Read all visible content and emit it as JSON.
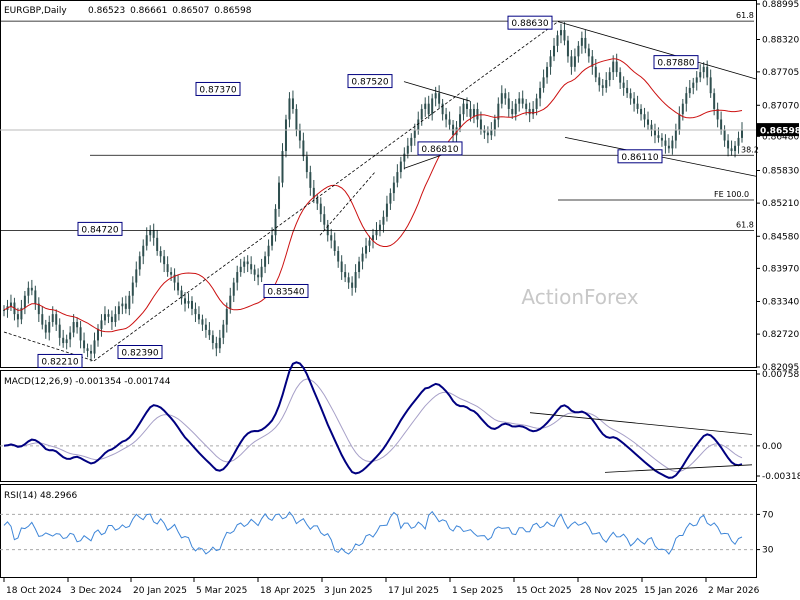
{
  "colors": {
    "candle": "#2f4f4f",
    "ma": "#cc1111",
    "macd": "#000080",
    "signal": "#a7a0c8",
    "rsi": "#3e86d8",
    "box_fill": "#ffffff",
    "box_border": "#000080",
    "line": "#000000",
    "grid_dash": "#aaaaaa"
  },
  "chart_data": [
    {
      "type": "candlestick",
      "title": "EURGBP,Daily",
      "ohlc": {
        "open": "0.86523",
        "high": "0.86661",
        "low": "0.86507",
        "close": "0.86598"
      },
      "watermark": "ActionForex",
      "y_ticks": [
        "0.88995",
        "0.88320",
        "0.87705",
        "0.87070",
        "0.86480",
        "0.85830",
        "0.85210",
        "0.84580",
        "0.83970",
        "0.83340",
        "0.82720",
        "0.82095"
      ],
      "x_ticks": [
        "18 Oct 2024",
        "3 Dec 2024",
        "20 Jan 2025",
        "5 Mar 2025",
        "18 Apr 2025",
        "3 Jun 2025",
        "17 Jul 2025",
        "1 Sep 2025",
        "15 Oct 2025",
        "28 Nov 2025",
        "15 Jan 2026",
        "2 Mar 2026"
      ],
      "last_price": "0.86598",
      "price_labels": [
        "0.88630",
        "0.87880",
        "0.87520",
        "0.87370",
        "0.86810",
        "0.86110",
        "0.84720",
        "0.83540",
        "0.82390",
        "0.82210"
      ],
      "fib_labels": [
        "61.8",
        "38.2",
        "FE 100.0",
        "61.8"
      ],
      "ma_period_note": "",
      "close_series": [
        0.8318,
        0.8325,
        0.8332,
        0.831,
        0.83,
        0.8322,
        0.8345,
        0.836,
        0.8355,
        0.833,
        0.831,
        0.829,
        0.8275,
        0.8295,
        0.831,
        0.829,
        0.8265,
        0.8255,
        0.8262,
        0.8275,
        0.8295,
        0.8285,
        0.826,
        0.8245,
        0.824,
        0.8235,
        0.826,
        0.8282,
        0.8298,
        0.831,
        0.8305,
        0.8295,
        0.831,
        0.8325,
        0.833,
        0.832,
        0.8345,
        0.837,
        0.8395,
        0.842,
        0.844,
        0.846,
        0.847,
        0.8455,
        0.843,
        0.842,
        0.8405,
        0.839,
        0.8385,
        0.837,
        0.8355,
        0.834,
        0.833,
        0.8335,
        0.832,
        0.831,
        0.83,
        0.829,
        0.828,
        0.827,
        0.8255,
        0.8245,
        0.8265,
        0.829,
        0.832,
        0.8345,
        0.837,
        0.839,
        0.84,
        0.841,
        0.8405,
        0.8395,
        0.8385,
        0.838,
        0.84,
        0.842,
        0.844,
        0.846,
        0.851,
        0.856,
        0.862,
        0.868,
        0.872,
        0.87,
        0.866,
        0.864,
        0.861,
        0.858,
        0.855,
        0.853,
        0.852,
        0.85,
        0.848,
        0.846,
        0.845,
        0.843,
        0.841,
        0.839,
        0.838,
        0.837,
        0.836,
        0.839,
        0.841,
        0.8425,
        0.844,
        0.845,
        0.846,
        0.847,
        0.848,
        0.8495,
        0.852,
        0.854,
        0.856,
        0.858,
        0.86,
        0.8615,
        0.863,
        0.8645,
        0.866,
        0.868,
        0.87,
        0.871,
        0.869,
        0.872,
        0.873,
        0.871,
        0.869,
        0.868,
        0.867,
        0.865,
        0.8665,
        0.869,
        0.871,
        0.87,
        0.8685,
        0.87,
        0.868,
        0.866,
        0.8655,
        0.865,
        0.866,
        0.868,
        0.871,
        0.873,
        0.872,
        0.87,
        0.869,
        0.871,
        0.872,
        0.871,
        0.87,
        0.869,
        0.87,
        0.872,
        0.874,
        0.876,
        0.878,
        0.88,
        0.882,
        0.884,
        0.885,
        0.883,
        0.88,
        0.878,
        0.88,
        0.882,
        0.8835,
        0.8815,
        0.88,
        0.878,
        0.876,
        0.8745,
        0.874,
        0.8755,
        0.877,
        0.879,
        0.877,
        0.875,
        0.874,
        0.873,
        0.872,
        0.871,
        0.87,
        0.869,
        0.868,
        0.867,
        0.866,
        0.865,
        0.8645,
        0.864,
        0.863,
        0.8625,
        0.864,
        0.866,
        0.869,
        0.871,
        0.873,
        0.874,
        0.875,
        0.876,
        0.877,
        0.878,
        0.876,
        0.873,
        0.87,
        0.868,
        0.866,
        0.864,
        0.8625,
        0.862,
        0.863,
        0.8645,
        0.866
      ]
    },
    {
      "type": "line",
      "title": "MACD(12,26,9) -0.001354 -0.001744",
      "y_ticks": [
        "0.007581",
        "0.00",
        "-0.003183"
      ]
    },
    {
      "type": "line",
      "title": "RSI(14) 48.2966",
      "y_ticks": [
        "70",
        "30"
      ]
    }
  ]
}
